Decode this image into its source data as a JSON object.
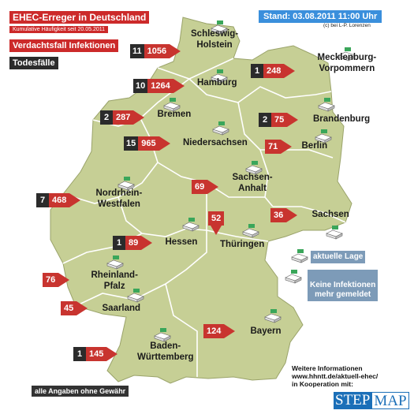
{
  "header": {
    "title": "EHEC-Erreger in Deutschland",
    "subtitle": "Kumulative Häufigkeit seit 20.05.2011",
    "legend_suspect": "Verdachtsfall Infektionen",
    "legend_death": "Todesfälle",
    "stand": "Stand: 03.08.2011 11:00 Uhr",
    "source": "(c) bei L-P. Lorenzen"
  },
  "legend": {
    "current": "aktuelle Lage",
    "none": "Keine Infektionen\nmehr gemeldet"
  },
  "footer": {
    "disclaimer": "alle Angaben ohne Gewähr",
    "info": "Weitere Informationen\nwww.hhntt.de/aktuell-ehec/\nin Kooperation mit:",
    "logo_left": "STEP",
    "logo_right": "MAP"
  },
  "colors": {
    "land": "#c6cf95",
    "border": "#ffffff",
    "suspect": "#c8342f",
    "death": "#2b2b2b",
    "legend_box": "#7d9bb8"
  },
  "states": [
    {
      "name": "Schleswig-\nHolstein",
      "deaths": 11,
      "cases": 1056
    },
    {
      "name": "Mecklenburg-\nVorpommern",
      "deaths": 1,
      "cases": 248
    },
    {
      "name": "Hamburg",
      "deaths": 10,
      "cases": 1264
    },
    {
      "name": "Bremen",
      "deaths": 2,
      "cases": 287
    },
    {
      "name": "Brandenburg",
      "deaths": 2,
      "cases": 75
    },
    {
      "name": "Niedersachsen",
      "deaths": 15,
      "cases": 965
    },
    {
      "name": "Berlin",
      "deaths": null,
      "cases": 71
    },
    {
      "name": "Sachsen-\nAnhalt",
      "deaths": null,
      "cases": 69
    },
    {
      "name": "Nordrhein-\nWestfalen",
      "deaths": 7,
      "cases": 468
    },
    {
      "name": "Sachsen",
      "deaths": null,
      "cases": 36
    },
    {
      "name": "Thüringen",
      "deaths": null,
      "cases": 52
    },
    {
      "name": "Hessen",
      "deaths": 1,
      "cases": 89
    },
    {
      "name": "Rheinland-\nPfalz",
      "deaths": null,
      "cases": 76
    },
    {
      "name": "Saarland",
      "deaths": null,
      "cases": 45
    },
    {
      "name": "Bayern",
      "deaths": null,
      "cases": 124
    },
    {
      "name": "Baden-\nWürttemberg",
      "deaths": 1,
      "cases": 145
    }
  ],
  "icon_names": [
    "status-icon"
  ]
}
